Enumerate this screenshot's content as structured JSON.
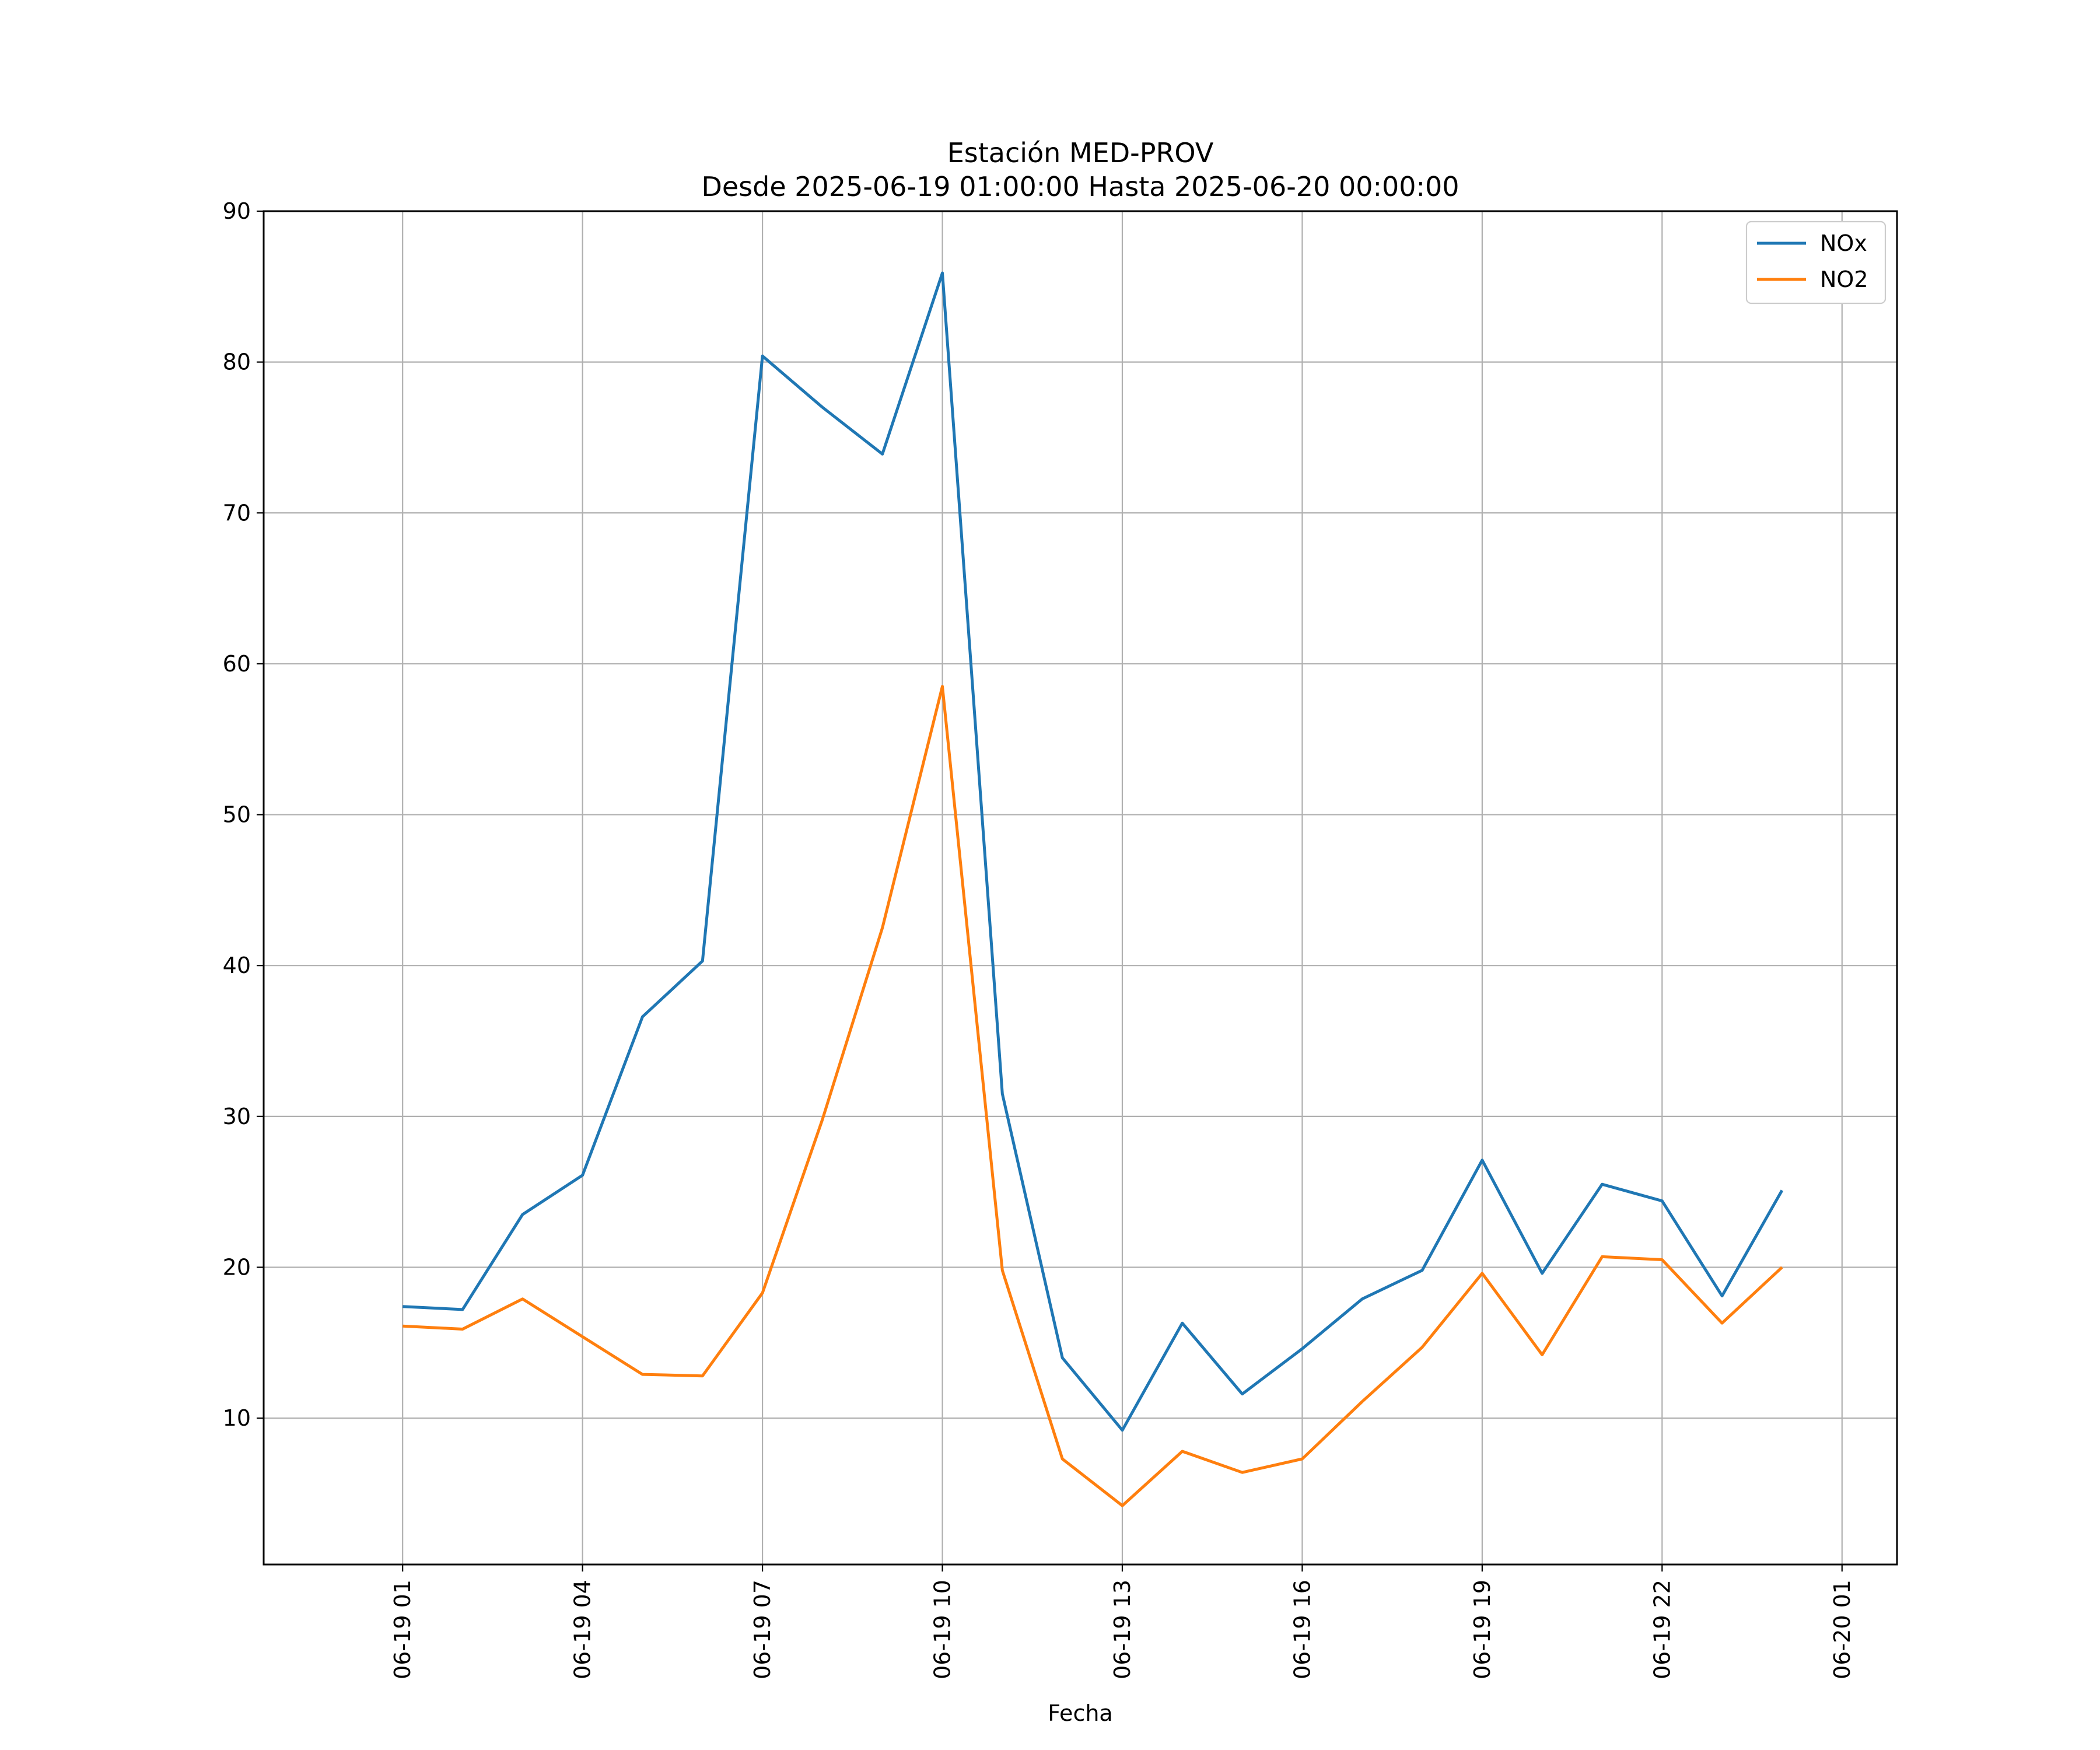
{
  "chart_data": {
    "type": "line",
    "title": "Estación MED-PROV",
    "subtitle": "Desde 2025-06-19 01:00:00 Hasta 2025-06-20 00:00:00",
    "xlabel": "Fecha",
    "ylabel": "",
    "x": [
      "2025-06-19 01:00",
      "2025-06-19 02:00",
      "2025-06-19 03:00",
      "2025-06-19 04:00",
      "2025-06-19 05:00",
      "2025-06-19 06:00",
      "2025-06-19 07:00",
      "2025-06-19 08:00",
      "2025-06-19 09:00",
      "2025-06-19 10:00",
      "2025-06-19 11:00",
      "2025-06-19 12:00",
      "2025-06-19 13:00",
      "2025-06-19 14:00",
      "2025-06-19 15:00",
      "2025-06-19 16:00",
      "2025-06-19 17:00",
      "2025-06-19 18:00",
      "2025-06-19 19:00",
      "2025-06-19 20:00",
      "2025-06-19 21:00",
      "2025-06-19 22:00",
      "2025-06-19 23:00",
      "2025-06-20 00:00"
    ],
    "series": [
      {
        "name": "NOx",
        "color": "#1f77b4",
        "values": [
          17.4,
          17.2,
          23.5,
          26.1,
          36.6,
          40.3,
          80.4,
          77.0,
          73.9,
          85.9,
          31.5,
          14.0,
          9.2,
          16.3,
          11.6,
          14.6,
          17.9,
          19.8,
          27.1,
          19.6,
          25.5,
          24.4,
          18.1,
          25.1
        ]
      },
      {
        "name": "NO2",
        "color": "#ff7f0e",
        "values": [
          16.1,
          15.9,
          17.9,
          15.4,
          12.9,
          12.8,
          18.3,
          29.8,
          42.5,
          58.5,
          19.8,
          7.3,
          4.2,
          7.8,
          6.4,
          7.3,
          11.1,
          14.7,
          19.6,
          14.2,
          20.7,
          20.5,
          16.3,
          20.0
        ]
      }
    ],
    "xticks": [
      "06-19 01",
      "06-19 04",
      "06-19 07",
      "06-19 10",
      "06-19 13",
      "06-19 16",
      "06-19 19",
      "06-19 22",
      "06-20 01"
    ],
    "xlim": [
      "2025-06-18 22:41",
      "2025-06-20 01:55"
    ],
    "yticks": [
      "10",
      "20",
      "30",
      "40",
      "50",
      "60",
      "70",
      "80",
      "90"
    ],
    "ylim": [
      0.3,
      90
    ],
    "grid": true,
    "legend": "top-right"
  }
}
